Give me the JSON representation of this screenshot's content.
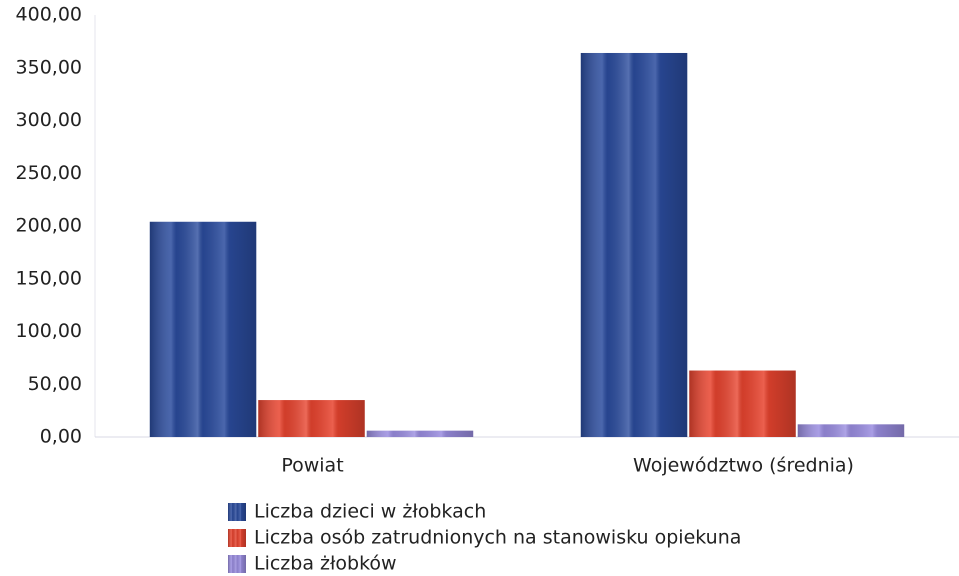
{
  "chart_data": {
    "type": "bar",
    "categories": [
      "Powiat",
      "Województwo (średnia)"
    ],
    "series": [
      {
        "name": "Liczba dzieci w żłobkach",
        "color": "#2b4c9e",
        "values": [
          204,
          364
        ]
      },
      {
        "name": "Liczba osób zatrudnionych na stanowisku opiekuna",
        "color": "#e8442f",
        "values": [
          35,
          63
        ]
      },
      {
        "name": "Liczba żłobków",
        "color": "#9a8de0",
        "values": [
          6,
          12
        ]
      }
    ],
    "ylim": [
      0,
      400
    ],
    "yticks": [
      {
        "value": 0,
        "label": "0,00"
      },
      {
        "value": 50,
        "label": "50,00"
      },
      {
        "value": 100,
        "label": "100,00"
      },
      {
        "value": 150,
        "label": "150,00"
      },
      {
        "value": 200,
        "label": "200,00"
      },
      {
        "value": 250,
        "label": "250,00"
      },
      {
        "value": 300,
        "label": "300,00"
      },
      {
        "value": 350,
        "label": "350,00"
      },
      {
        "value": 400,
        "label": "400,00"
      }
    ],
    "grid": false
  }
}
